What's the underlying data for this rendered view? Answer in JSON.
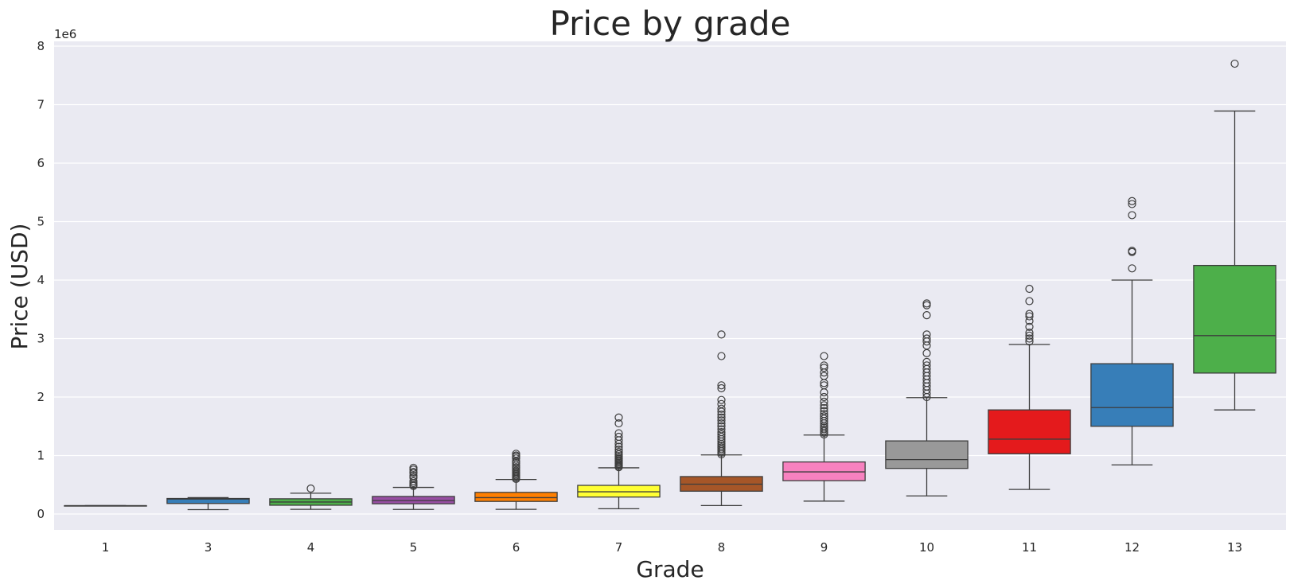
{
  "chart_data": {
    "type": "box",
    "title": "Price by grade",
    "xlabel": "Grade",
    "ylabel": "Price (USD)",
    "y_multiplier_label": "1e6",
    "y_unit": 1000000,
    "ylim": [
      -300000,
      8100000
    ],
    "yticks": [
      0,
      1000000,
      2000000,
      3000000,
      4000000,
      5000000,
      6000000,
      7000000,
      8000000
    ],
    "ytick_labels": [
      "0",
      "1",
      "2",
      "3",
      "4",
      "5",
      "6",
      "7",
      "8"
    ],
    "grid": true,
    "categories": [
      "1",
      "3",
      "4",
      "5",
      "6",
      "7",
      "8",
      "9",
      "10",
      "11",
      "12",
      "13"
    ],
    "boxes": [
      {
        "q1": 142000,
        "median": 142000,
        "q3": 142000,
        "whislo": 142000,
        "whishi": 142000,
        "fliers": []
      },
      {
        "q1": 180000,
        "median": 255000,
        "q3": 265000,
        "whislo": 75000,
        "whishi": 280000,
        "fliers": []
      },
      {
        "q1": 150000,
        "median": 205000,
        "q3": 260000,
        "whislo": 80000,
        "whishi": 355000,
        "fliers": [
          435000
        ]
      },
      {
        "q1": 175000,
        "median": 230000,
        "q3": 300000,
        "whislo": 78000,
        "whishi": 455000,
        "fliers": [
          480000,
          500000,
          530000,
          560000,
          620000,
          650000,
          700000,
          720000,
          760000,
          790000
        ]
      },
      {
        "q1": 215000,
        "median": 280000,
        "q3": 370000,
        "whislo": 80000,
        "whishi": 590000,
        "fliers": [
          600000,
          620000,
          640000,
          660000,
          680000,
          700000,
          720000,
          740000,
          770000,
          800000,
          830000,
          870000,
          900000,
          950000,
          980000,
          1000000,
          1030000
        ]
      },
      {
        "q1": 290000,
        "median": 380000,
        "q3": 490000,
        "whislo": 90000,
        "whishi": 790000,
        "fliers": [
          800000,
          820000,
          840000,
          860000,
          880000,
          900000,
          920000,
          940000,
          960000,
          990000,
          1020000,
          1060000,
          1100000,
          1150000,
          1200000,
          1260000,
          1320000,
          1380000,
          1550000,
          1650000
        ]
      },
      {
        "q1": 390000,
        "median": 510000,
        "q3": 640000,
        "whislo": 145000,
        "whishi": 1010000,
        "fliers": [
          1020000,
          1050000,
          1080000,
          1110000,
          1140000,
          1170000,
          1200000,
          1240000,
          1280000,
          1320000,
          1360000,
          1400000,
          1450000,
          1500000,
          1550000,
          1600000,
          1650000,
          1700000,
          1750000,
          1800000,
          1880000,
          1950000,
          2150000,
          2200000,
          2700000,
          3070000
        ]
      },
      {
        "q1": 570000,
        "median": 720000,
        "q3": 890000,
        "whislo": 220000,
        "whishi": 1350000,
        "fliers": [
          1360000,
          1390000,
          1420000,
          1450000,
          1480000,
          1510000,
          1550000,
          1590000,
          1630000,
          1670000,
          1710000,
          1760000,
          1810000,
          1860000,
          1920000,
          2000000,
          2080000,
          2200000,
          2240000,
          2360000,
          2420000,
          2500000,
          2540000,
          2700000
        ]
      },
      {
        "q1": 780000,
        "median": 930000,
        "q3": 1250000,
        "whislo": 310000,
        "whishi": 1990000,
        "fliers": [
          2000000,
          2060000,
          2120000,
          2180000,
          2240000,
          2300000,
          2360000,
          2420000,
          2480000,
          2540000,
          2600000,
          2750000,
          2880000,
          2950000,
          3000000,
          3070000,
          3400000,
          3570000,
          3600000
        ]
      },
      {
        "q1": 1030000,
        "median": 1280000,
        "q3": 1780000,
        "whislo": 420000,
        "whishi": 2900000,
        "fliers": [
          2950000,
          3000000,
          3050000,
          3100000,
          3200000,
          3300000,
          3380000,
          3420000,
          3640000,
          3850000
        ]
      },
      {
        "q1": 1500000,
        "median": 1820000,
        "q3": 2570000,
        "whislo": 840000,
        "whishi": 4000000,
        "fliers": [
          4200000,
          4480000,
          4500000,
          5110000,
          5300000,
          5350000
        ]
      },
      {
        "q1": 2410000,
        "median": 3050000,
        "q3": 4250000,
        "whislo": 1780000,
        "whishi": 6890000,
        "fliers": [
          7700000
        ]
      }
    ],
    "colors": [
      "#e41a1c",
      "#377eb8",
      "#4daf4a",
      "#984ea3",
      "#ff7f00",
      "#ffff33",
      "#a65628",
      "#f781bf",
      "#999999",
      "#e41a1c",
      "#377eb8",
      "#4daf4a"
    ],
    "background_color": "#eaeaf2",
    "grid_color": "#ffffff",
    "line_color": "#3d3d3d"
  }
}
